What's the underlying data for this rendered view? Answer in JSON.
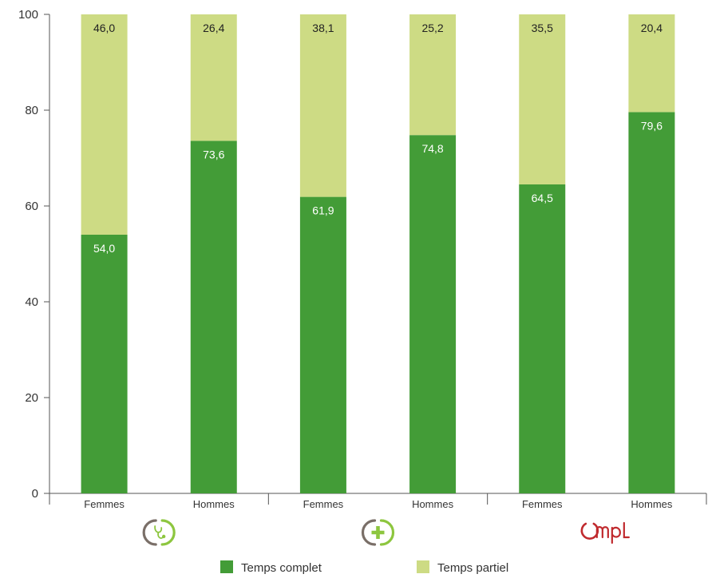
{
  "chart_data": {
    "type": "bar",
    "stacked": true,
    "groups": [
      {
        "icon": "medical-stethoscope-icon",
        "categories": [
          "Femmes",
          "Hommes"
        ]
      },
      {
        "icon": "pharmacy-cross-icon",
        "categories": [
          "Femmes",
          "Hommes"
        ]
      },
      {
        "icon": "ompl-logo",
        "logo_text": "Ompl",
        "categories": [
          "Femmes",
          "Hommes"
        ]
      }
    ],
    "categories": [
      "Femmes",
      "Hommes",
      "Femmes",
      "Hommes",
      "Femmes",
      "Hommes"
    ],
    "series": [
      {
        "name": "Temps complet",
        "color": "#439c37",
        "label_color": "#ffffff",
        "values": [
          54.0,
          73.6,
          61.9,
          74.8,
          64.5,
          79.6
        ],
        "labels": [
          "54,0",
          "73,6",
          "61,9",
          "74,8",
          "64,5",
          "79,6"
        ]
      },
      {
        "name": "Temps partiel",
        "color": "#cddb84",
        "label_color": "#222222",
        "values": [
          46.0,
          26.4,
          38.1,
          25.2,
          35.5,
          20.4
        ],
        "labels": [
          "46,0",
          "26,4",
          "38,1",
          "25,2",
          "35,5",
          "20,4"
        ]
      }
    ],
    "ylim": [
      0,
      100
    ],
    "yticks": [
      0,
      20,
      40,
      60,
      80,
      100
    ],
    "grid": false,
    "legend_position": "bottom-center"
  }
}
